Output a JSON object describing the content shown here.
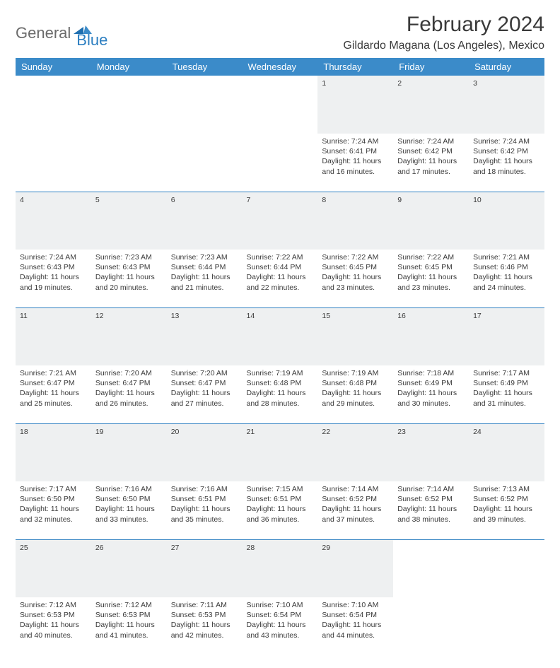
{
  "logo": {
    "part1": "General",
    "part2": "Blue"
  },
  "title": "February 2024",
  "location": "Gildardo Magana (Los Angeles), Mexico",
  "colors": {
    "header_bg": "#3b8bc9",
    "header_text": "#ffffff",
    "daynum_bg": "#eef0f1",
    "text": "#3a3a3a",
    "rule": "#2d7fc1",
    "logo_gray": "#6b6b6b",
    "logo_blue": "#2d7fc1"
  },
  "weekdays": [
    "Sunday",
    "Monday",
    "Tuesday",
    "Wednesday",
    "Thursday",
    "Friday",
    "Saturday"
  ],
  "weeks": [
    {
      "nums": [
        "",
        "",
        "",
        "",
        "1",
        "2",
        "3"
      ],
      "info": [
        "",
        "",
        "",
        "",
        "Sunrise: 7:24 AM\nSunset: 6:41 PM\nDaylight: 11 hours and 16 minutes.",
        "Sunrise: 7:24 AM\nSunset: 6:42 PM\nDaylight: 11 hours and 17 minutes.",
        "Sunrise: 7:24 AM\nSunset: 6:42 PM\nDaylight: 11 hours and 18 minutes."
      ]
    },
    {
      "nums": [
        "4",
        "5",
        "6",
        "7",
        "8",
        "9",
        "10"
      ],
      "info": [
        "Sunrise: 7:24 AM\nSunset: 6:43 PM\nDaylight: 11 hours and 19 minutes.",
        "Sunrise: 7:23 AM\nSunset: 6:43 PM\nDaylight: 11 hours and 20 minutes.",
        "Sunrise: 7:23 AM\nSunset: 6:44 PM\nDaylight: 11 hours and 21 minutes.",
        "Sunrise: 7:22 AM\nSunset: 6:44 PM\nDaylight: 11 hours and 22 minutes.",
        "Sunrise: 7:22 AM\nSunset: 6:45 PM\nDaylight: 11 hours and 23 minutes.",
        "Sunrise: 7:22 AM\nSunset: 6:45 PM\nDaylight: 11 hours and 23 minutes.",
        "Sunrise: 7:21 AM\nSunset: 6:46 PM\nDaylight: 11 hours and 24 minutes."
      ]
    },
    {
      "nums": [
        "11",
        "12",
        "13",
        "14",
        "15",
        "16",
        "17"
      ],
      "info": [
        "Sunrise: 7:21 AM\nSunset: 6:47 PM\nDaylight: 11 hours and 25 minutes.",
        "Sunrise: 7:20 AM\nSunset: 6:47 PM\nDaylight: 11 hours and 26 minutes.",
        "Sunrise: 7:20 AM\nSunset: 6:47 PM\nDaylight: 11 hours and 27 minutes.",
        "Sunrise: 7:19 AM\nSunset: 6:48 PM\nDaylight: 11 hours and 28 minutes.",
        "Sunrise: 7:19 AM\nSunset: 6:48 PM\nDaylight: 11 hours and 29 minutes.",
        "Sunrise: 7:18 AM\nSunset: 6:49 PM\nDaylight: 11 hours and 30 minutes.",
        "Sunrise: 7:17 AM\nSunset: 6:49 PM\nDaylight: 11 hours and 31 minutes."
      ]
    },
    {
      "nums": [
        "18",
        "19",
        "20",
        "21",
        "22",
        "23",
        "24"
      ],
      "info": [
        "Sunrise: 7:17 AM\nSunset: 6:50 PM\nDaylight: 11 hours and 32 minutes.",
        "Sunrise: 7:16 AM\nSunset: 6:50 PM\nDaylight: 11 hours and 33 minutes.",
        "Sunrise: 7:16 AM\nSunset: 6:51 PM\nDaylight: 11 hours and 35 minutes.",
        "Sunrise: 7:15 AM\nSunset: 6:51 PM\nDaylight: 11 hours and 36 minutes.",
        "Sunrise: 7:14 AM\nSunset: 6:52 PM\nDaylight: 11 hours and 37 minutes.",
        "Sunrise: 7:14 AM\nSunset: 6:52 PM\nDaylight: 11 hours and 38 minutes.",
        "Sunrise: 7:13 AM\nSunset: 6:52 PM\nDaylight: 11 hours and 39 minutes."
      ]
    },
    {
      "nums": [
        "25",
        "26",
        "27",
        "28",
        "29",
        "",
        ""
      ],
      "info": [
        "Sunrise: 7:12 AM\nSunset: 6:53 PM\nDaylight: 11 hours and 40 minutes.",
        "Sunrise: 7:12 AM\nSunset: 6:53 PM\nDaylight: 11 hours and 41 minutes.",
        "Sunrise: 7:11 AM\nSunset: 6:53 PM\nDaylight: 11 hours and 42 minutes.",
        "Sunrise: 7:10 AM\nSunset: 6:54 PM\nDaylight: 11 hours and 43 minutes.",
        "Sunrise: 7:10 AM\nSunset: 6:54 PM\nDaylight: 11 hours and 44 minutes.",
        "",
        ""
      ]
    }
  ]
}
